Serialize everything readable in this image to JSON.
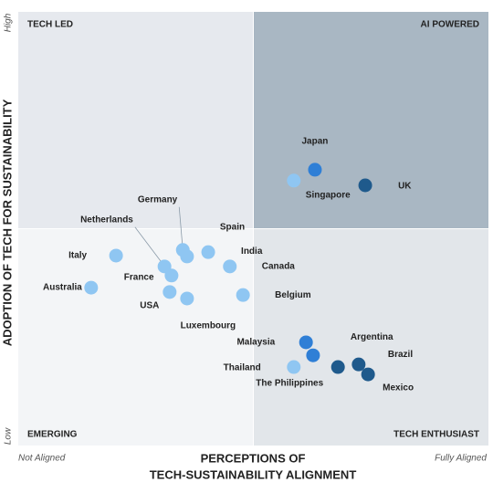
{
  "chart_data": {
    "type": "scatter",
    "xlabel": [
      "PERCEPTIONS OF",
      "TECH-SUSTAINABILITY ALIGNMENT"
    ],
    "ylabel": "ADOPTION OF TECH FOR SUSTAINABILITY",
    "quadrant_labels": {
      "top_left": "TECH LED",
      "top_right": "AI POWERED",
      "bottom_left": "EMERGING",
      "bottom_right": "TECH ENTHUSIAST"
    },
    "xlim": [
      0,
      100
    ],
    "ylim": [
      0,
      100
    ],
    "xticks": [
      {
        "value": 0,
        "label": "Not Aligned"
      },
      {
        "value": 100,
        "label": "Fully Aligned"
      }
    ],
    "yticks": [
      {
        "value": 0,
        "label": "Low"
      },
      {
        "value": 100,
        "label": "High"
      }
    ],
    "names": [
      "Japan",
      "Singapore",
      "UK",
      "Netherlands",
      "Germany",
      "Spain",
      "India",
      "Canada",
      "Belgium",
      "Italy",
      "Australia",
      "France",
      "USA",
      "Luxembourg",
      "Malaysia",
      "Argentina",
      "Thailand",
      "The Philippines",
      "Brazil",
      "Mexico"
    ],
    "x": [
      63.1,
      58.6,
      73.8,
      32.6,
      35.0,
      35.9,
      40.4,
      45.0,
      47.8,
      20.8,
      15.5,
      31.1,
      32.2,
      35.9,
      61.2,
      62.7,
      58.6,
      68.0,
      72.4,
      74.4
    ],
    "y": [
      63.6,
      61.1,
      60.0,
      39.2,
      45.1,
      43.6,
      44.6,
      41.3,
      34.7,
      43.8,
      36.4,
      41.3,
      35.4,
      33.9,
      23.8,
      20.8,
      18.1,
      18.1,
      18.7,
      16.4
    ],
    "colors": [
      "#2f7fd6",
      "#8fc6f2",
      "#1f5a8c",
      "#8fc6f2",
      "#8fc6f2",
      "#8fc6f2",
      "#8fc6f2",
      "#8fc6f2",
      "#8fc6f2",
      "#8fc6f2",
      "#8fc6f2",
      "#8fc6f2",
      "#8fc6f2",
      "#8fc6f2",
      "#2f7fd6",
      "#2f7fd6",
      "#8fc6f2",
      "#1f5a8c",
      "#1f5a8c",
      "#1f5a8c"
    ]
  }
}
